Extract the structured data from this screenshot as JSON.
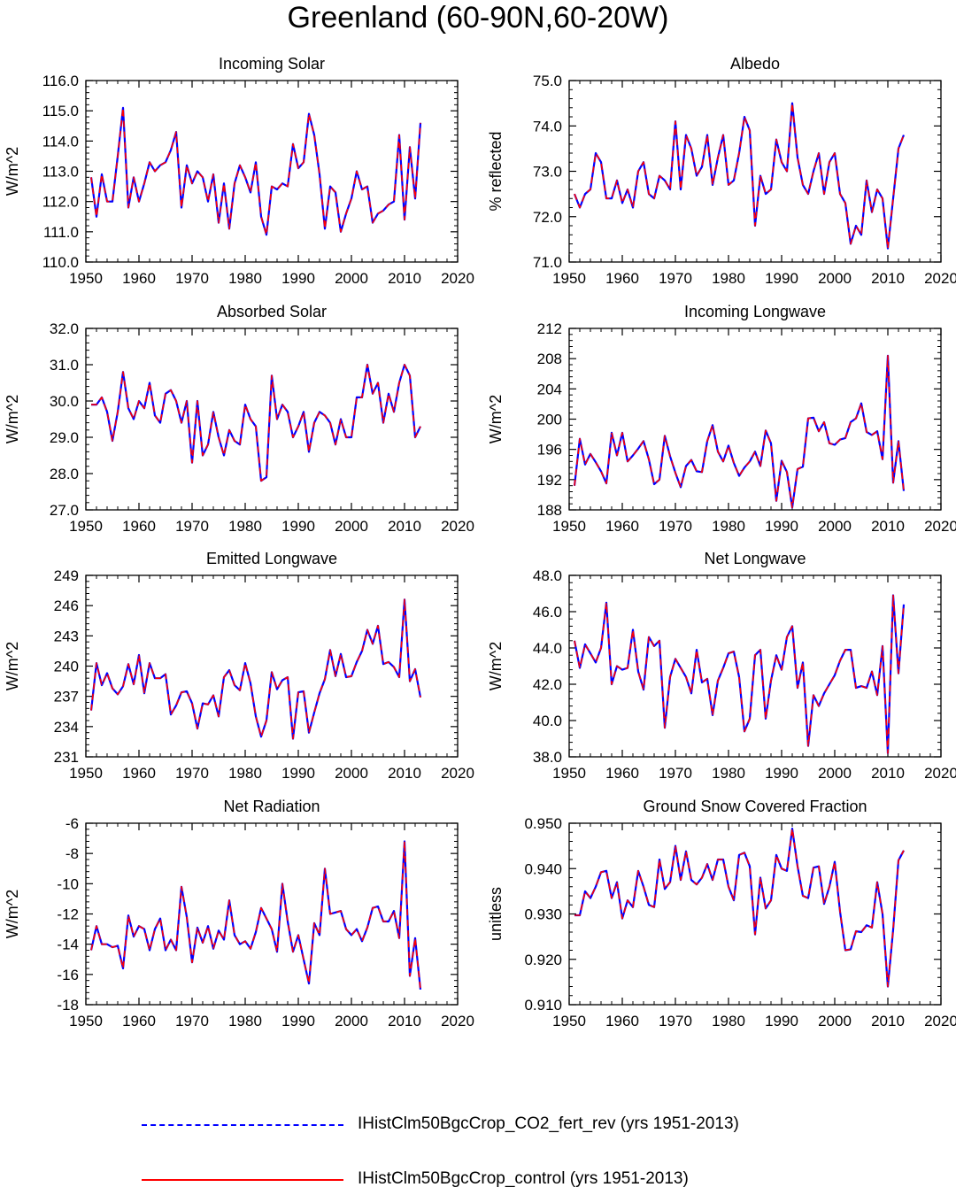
{
  "title": "Greenland (60-90N,60-20W)",
  "colors": {
    "series1": "#0000ff",
    "series2": "#ff0000",
    "axis": "#000000"
  },
  "legend": [
    {
      "label": "IHistClm50BgcCrop_CO2_fert_rev (yrs 1951-2013)",
      "color": "#0000ff",
      "style": "dashed"
    },
    {
      "label": "IHistClm50BgcCrop_control (yrs 1951-2013)",
      "color": "#ff0000",
      "style": "solid"
    }
  ],
  "chart_data": [
    {
      "type": "line",
      "title": "Incoming Solar",
      "ylabel": "W/m^2",
      "xlim": [
        1950,
        2020
      ],
      "ylim": [
        110,
        116
      ],
      "xticks": [
        1950,
        1960,
        1970,
        1980,
        1990,
        2000,
        2010,
        2020
      ],
      "yticks": [
        "110.0",
        "111.0",
        "112.0",
        "113.0",
        "114.0",
        "115.0",
        "116.0"
      ],
      "x_start": 1951,
      "values": [
        112.8,
        111.5,
        112.9,
        112.0,
        112.0,
        113.5,
        115.1,
        111.8,
        112.8,
        112.0,
        112.6,
        113.3,
        113.0,
        113.2,
        113.3,
        113.7,
        114.3,
        111.8,
        113.2,
        112.6,
        113.0,
        112.8,
        112.0,
        112.9,
        111.3,
        112.6,
        111.1,
        112.6,
        113.2,
        112.8,
        112.3,
        113.3,
        111.5,
        110.9,
        112.5,
        112.4,
        112.6,
        112.5,
        113.9,
        113.1,
        113.3,
        114.9,
        114.2,
        112.9,
        111.1,
        112.5,
        112.3,
        111.0,
        111.6,
        112.1,
        113.0,
        112.4,
        112.5,
        111.3,
        111.6,
        111.7,
        111.9,
        112.0,
        114.2,
        111.4,
        113.8,
        112.1,
        114.6
      ]
    },
    {
      "type": "line",
      "title": "Albedo",
      "ylabel": "% reflected",
      "xlim": [
        1950,
        2020
      ],
      "ylim": [
        71,
        75
      ],
      "xticks": [
        1950,
        1960,
        1970,
        1980,
        1990,
        2000,
        2010,
        2020
      ],
      "yticks": [
        "71.0",
        "72.0",
        "73.0",
        "74.0",
        "75.0"
      ],
      "x_start": 1951,
      "values": [
        72.5,
        72.2,
        72.5,
        72.6,
        73.4,
        73.2,
        72.4,
        72.4,
        72.8,
        72.3,
        72.6,
        72.2,
        73.0,
        73.2,
        72.5,
        72.4,
        72.9,
        72.8,
        72.6,
        74.1,
        72.6,
        73.8,
        73.5,
        72.9,
        73.1,
        73.8,
        72.7,
        73.3,
        73.8,
        72.7,
        72.8,
        73.4,
        74.2,
        73.9,
        71.8,
        72.9,
        72.5,
        72.6,
        73.7,
        73.2,
        73.0,
        74.5,
        73.3,
        72.7,
        72.5,
        73.0,
        73.4,
        72.5,
        73.2,
        73.4,
        72.5,
        72.3,
        71.4,
        71.8,
        71.6,
        72.8,
        72.1,
        72.6,
        72.4,
        71.3,
        72.4,
        73.5,
        73.8
      ]
    },
    {
      "type": "line",
      "title": "Absorbed Solar",
      "ylabel": "W/m^2",
      "xlim": [
        1950,
        2020
      ],
      "ylim": [
        27,
        32
      ],
      "xticks": [
        1950,
        1960,
        1970,
        1980,
        1990,
        2000,
        2010,
        2020
      ],
      "yticks": [
        "27.0",
        "28.0",
        "29.0",
        "30.0",
        "31.0",
        "32.0"
      ],
      "x_start": 1951,
      "values": [
        29.9,
        29.9,
        30.1,
        29.7,
        28.9,
        29.7,
        30.8,
        29.8,
        29.5,
        30.0,
        29.8,
        30.5,
        29.6,
        29.4,
        30.2,
        30.3,
        30.0,
        29.4,
        30.0,
        28.3,
        30.0,
        28.5,
        28.8,
        29.7,
        29.0,
        28.5,
        29.2,
        28.9,
        28.8,
        29.9,
        29.5,
        29.3,
        27.8,
        27.9,
        30.7,
        29.5,
        29.9,
        29.7,
        29.0,
        29.3,
        29.7,
        28.6,
        29.4,
        29.7,
        29.6,
        29.4,
        28.8,
        29.5,
        29.0,
        29.0,
        30.1,
        30.1,
        31.0,
        30.2,
        30.5,
        29.4,
        30.2,
        29.7,
        30.5,
        31.0,
        30.7,
        29.0,
        29.3
      ]
    },
    {
      "type": "line",
      "title": "Incoming Longwave",
      "ylabel": "W/m^2",
      "xlim": [
        1950,
        2020
      ],
      "ylim": [
        188,
        212
      ],
      "xticks": [
        1950,
        1960,
        1970,
        1980,
        1990,
        2000,
        2010,
        2020
      ],
      "yticks": [
        "188",
        "192",
        "196",
        "200",
        "204",
        "208",
        "212"
      ],
      "x_start": 1951,
      "values": [
        191.2,
        197.4,
        194.0,
        195.4,
        194.3,
        193.1,
        191.5,
        198.2,
        195.2,
        198.2,
        194.4,
        195.2,
        196.1,
        197.1,
        194.7,
        191.4,
        192.0,
        197.8,
        195.1,
        192.9,
        191.0,
        193.8,
        194.6,
        193.1,
        193.0,
        197.1,
        199.2,
        195.7,
        194.4,
        196.5,
        194.2,
        192.5,
        193.6,
        194.4,
        195.7,
        193.8,
        198.5,
        196.8,
        189.2,
        194.5,
        193.0,
        188.3,
        193.4,
        193.7,
        200.1,
        200.2,
        198.4,
        199.6,
        196.8,
        196.6,
        197.3,
        197.5,
        199.6,
        200.1,
        202.1,
        198.3,
        197.9,
        198.4,
        194.7,
        208.4,
        191.6,
        197.1,
        190.5
      ]
    },
    {
      "type": "line",
      "title": "Emitted Longwave",
      "ylabel": "W/m^2",
      "xlim": [
        1950,
        2020
      ],
      "ylim": [
        231,
        249
      ],
      "xticks": [
        1950,
        1960,
        1970,
        1980,
        1990,
        2000,
        2010,
        2020
      ],
      "yticks": [
        "231",
        "234",
        "237",
        "240",
        "243",
        "246",
        "249"
      ],
      "x_start": 1951,
      "values": [
        235.6,
        240.3,
        238.1,
        239.3,
        237.8,
        237.2,
        238.0,
        240.2,
        238.2,
        241.1,
        237.3,
        240.3,
        238.8,
        238.8,
        239.2,
        235.2,
        236.1,
        237.4,
        237.5,
        236.3,
        233.8,
        236.3,
        236.2,
        237.1,
        235.0,
        238.9,
        239.6,
        238.1,
        237.6,
        240.3,
        238.3,
        235.0,
        233.0,
        234.6,
        239.4,
        237.7,
        238.6,
        238.9,
        232.8,
        237.4,
        237.5,
        233.4,
        235.4,
        237.3,
        238.7,
        241.6,
        239.0,
        241.2,
        238.9,
        239.0,
        240.4,
        241.5,
        243.6,
        242.2,
        244.0,
        240.2,
        240.4,
        239.9,
        238.9,
        246.6,
        238.5,
        239.7,
        236.9
      ]
    },
    {
      "type": "line",
      "title": "Net Longwave",
      "ylabel": "W/m^2",
      "xlim": [
        1950,
        2020
      ],
      "ylim": [
        38,
        48
      ],
      "xticks": [
        1950,
        1960,
        1970,
        1980,
        1990,
        2000,
        2010,
        2020
      ],
      "yticks": [
        "38.0",
        "40.0",
        "42.0",
        "44.0",
        "46.0",
        "48.0"
      ],
      "x_start": 1951,
      "values": [
        44.4,
        42.9,
        44.2,
        43.7,
        43.2,
        44.0,
        46.5,
        42.0,
        43.0,
        42.8,
        42.9,
        45.0,
        42.7,
        41.7,
        44.6,
        44.1,
        44.4,
        39.6,
        42.4,
        43.4,
        42.9,
        42.4,
        41.5,
        43.9,
        42.1,
        42.3,
        40.3,
        42.2,
        42.9,
        43.7,
        43.8,
        42.4,
        39.4,
        40.1,
        43.6,
        43.9,
        40.1,
        42.2,
        43.6,
        42.8,
        44.6,
        45.2,
        41.8,
        43.2,
        38.6,
        41.4,
        40.8,
        41.5,
        42.0,
        42.5,
        43.3,
        43.9,
        43.9,
        41.8,
        41.9,
        41.8,
        42.7,
        41.4,
        44.1,
        38.2,
        46.9,
        42.6,
        46.4
      ]
    },
    {
      "type": "line",
      "title": "Net Radiation",
      "ylabel": "W/m^2",
      "xlim": [
        1950,
        2020
      ],
      "ylim": [
        -18,
        -6
      ],
      "xticks": [
        1950,
        1960,
        1970,
        1980,
        1990,
        2000,
        2010,
        2020
      ],
      "yticks": [
        "-18",
        "-16",
        "-14",
        "-12",
        "-10",
        "-8",
        "-6"
      ],
      "x_start": 1951,
      "values": [
        -14.4,
        -12.8,
        -14.0,
        -14.0,
        -14.2,
        -14.1,
        -15.6,
        -12.1,
        -13.5,
        -12.8,
        -13.0,
        -14.4,
        -13.0,
        -12.3,
        -14.4,
        -13.7,
        -14.4,
        -10.2,
        -12.2,
        -15.2,
        -12.9,
        -13.9,
        -12.8,
        -14.3,
        -13.1,
        -13.7,
        -11.1,
        -13.4,
        -14.0,
        -13.8,
        -14.3,
        -13.2,
        -11.6,
        -12.3,
        -13.0,
        -14.5,
        -10.0,
        -12.5,
        -14.5,
        -13.4,
        -15.0,
        -16.6,
        -12.6,
        -13.4,
        -9.0,
        -12.0,
        -11.9,
        -11.8,
        -13.0,
        -13.4,
        -13.0,
        -13.8,
        -12.9,
        -11.6,
        -11.5,
        -12.5,
        -12.5,
        -11.8,
        -13.6,
        -7.2,
        -16.1,
        -13.6,
        -17.0
      ]
    },
    {
      "type": "line",
      "title": "Ground Snow Covered Fraction",
      "ylabel": "unitless",
      "xlim": [
        1950,
        2020
      ],
      "ylim": [
        0.91,
        0.95
      ],
      "xticks": [
        1950,
        1960,
        1970,
        1980,
        1990,
        2000,
        2010,
        2020
      ],
      "yticks": [
        "0.910",
        "0.920",
        "0.930",
        "0.940",
        "0.950"
      ],
      "x_start": 1951,
      "values": [
        0.9297,
        0.9297,
        0.935,
        0.9335,
        0.936,
        0.9392,
        0.9395,
        0.9335,
        0.937,
        0.929,
        0.933,
        0.9315,
        0.9395,
        0.936,
        0.932,
        0.9315,
        0.942,
        0.9355,
        0.937,
        0.945,
        0.9375,
        0.9438,
        0.9375,
        0.9365,
        0.938,
        0.941,
        0.9375,
        0.942,
        0.942,
        0.936,
        0.933,
        0.943,
        0.9435,
        0.9405,
        0.9255,
        0.938,
        0.9312,
        0.933,
        0.943,
        0.94,
        0.9395,
        0.9488,
        0.9405,
        0.934,
        0.9335,
        0.9402,
        0.9405,
        0.9322,
        0.936,
        0.9415,
        0.9305,
        0.922,
        0.9222,
        0.9262,
        0.926,
        0.9275,
        0.927,
        0.937,
        0.93,
        0.914,
        0.9265,
        0.9418,
        0.944
      ]
    }
  ]
}
